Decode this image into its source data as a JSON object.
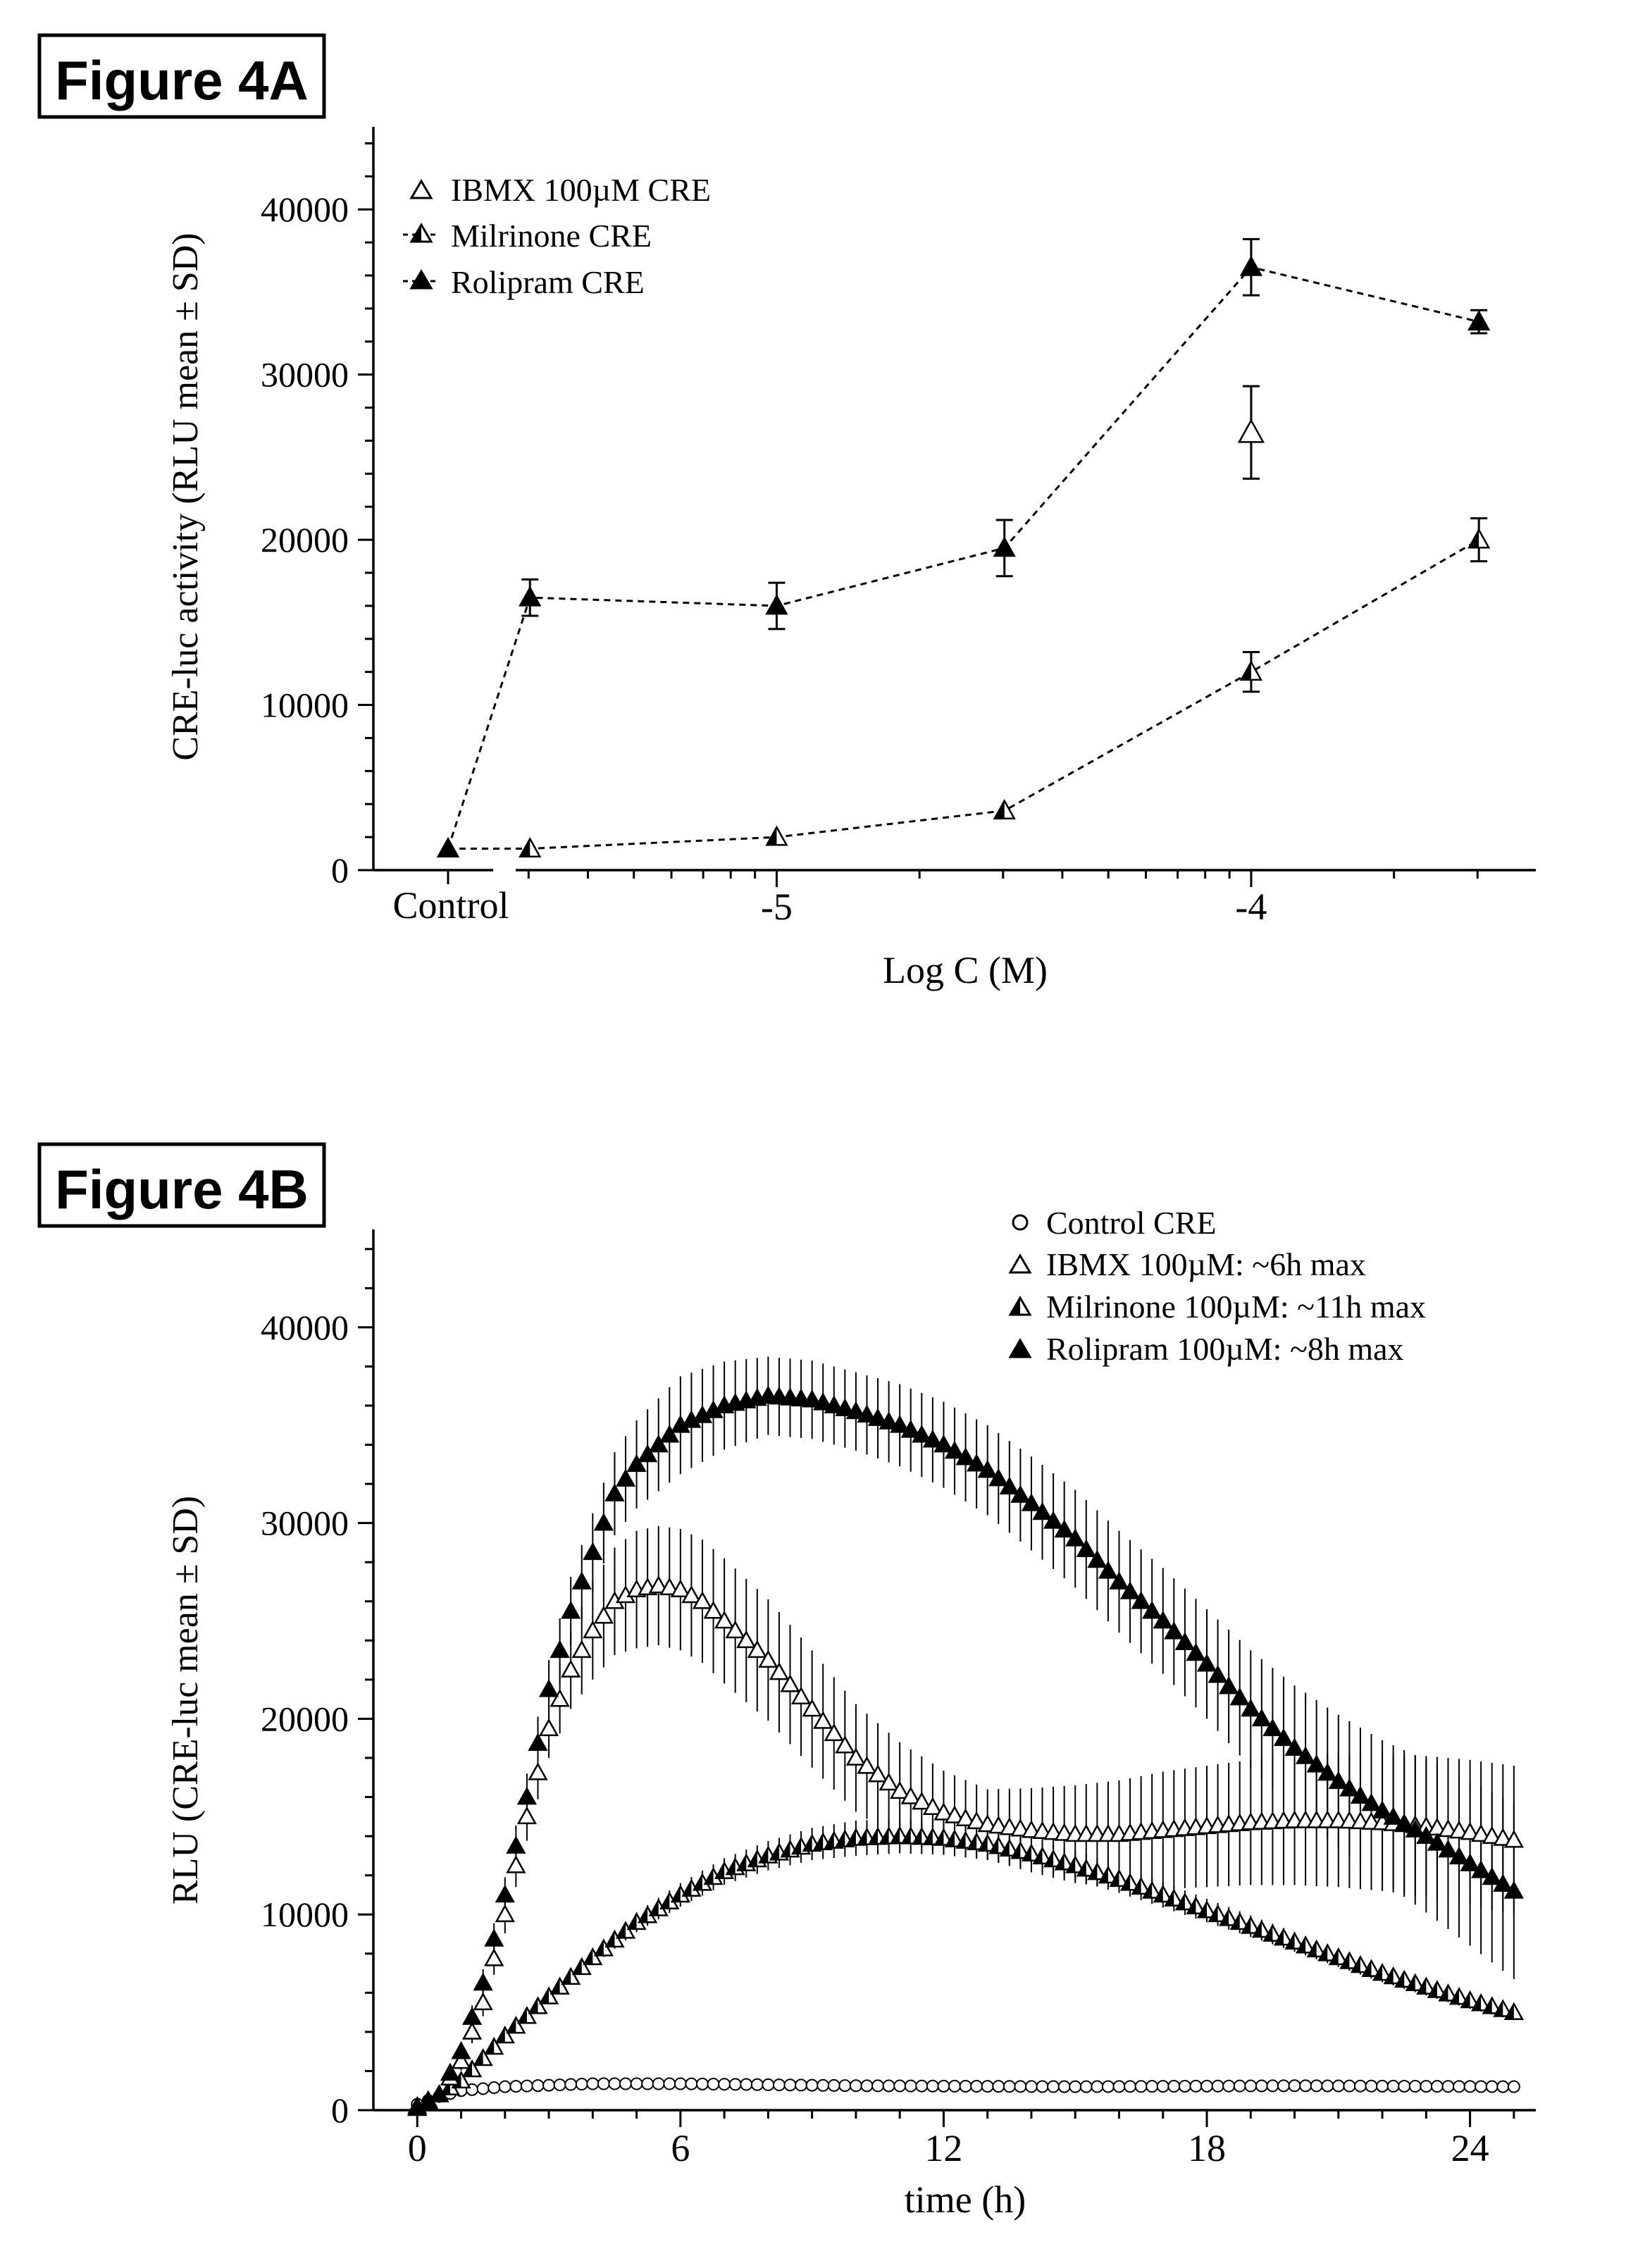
{
  "panels": [
    {
      "label": "Figure 4A",
      "type": "line",
      "xlabel": "Log C (M)",
      "ylabel": "CRE-luc activity (RLU mean ± SD)",
      "x_range": [
        -5.85,
        -3.4
      ],
      "ylim": [
        0,
        45000
      ],
      "y_ticks": [
        0,
        10000,
        20000,
        30000,
        40000
      ],
      "y_tick_labels": [
        "0",
        "10000",
        "20000",
        "30000",
        "40000"
      ],
      "x_ticks": [
        -5,
        -4
      ],
      "x_tick_labels": [
        "-5",
        "-4"
      ],
      "control_label": "Control",
      "legend": [
        {
          "label": "IBMX 100µM CRE",
          "marker": "open"
        },
        {
          "label": "Milrinone CRE",
          "marker": "half"
        },
        {
          "label": "Rolipram CRE",
          "marker": "filled"
        }
      ],
      "ibmx_point": {
        "x": -4.0,
        "y": 26500,
        "sd": 2800
      },
      "series": [
        {
          "name": "Milrinone CRE",
          "marker": "half",
          "points": [
            {
              "x": "Control",
              "y": 1300,
              "sd": 0
            },
            {
              "x": -5.52,
              "y": 1300,
              "sd": 0
            },
            {
              "x": -5.0,
              "y": 2000,
              "sd": 0
            },
            {
              "x": -4.52,
              "y": 3600,
              "sd": 0
            },
            {
              "x": -4.0,
              "y": 12000,
              "sd": 1200
            },
            {
              "x": -3.52,
              "y": 20000,
              "sd": 1300
            }
          ]
        },
        {
          "name": "Rolipram CRE",
          "marker": "filled",
          "points": [
            {
              "x": "Control",
              "y": 1300,
              "sd": 0
            },
            {
              "x": -5.52,
              "y": 16500,
              "sd": 1100
            },
            {
              "x": -5.0,
              "y": 16000,
              "sd": 1400
            },
            {
              "x": -4.52,
              "y": 19500,
              "sd": 1700
            },
            {
              "x": -4.0,
              "y": 36500,
              "sd": 1700
            },
            {
              "x": -3.52,
              "y": 33200,
              "sd": 700
            }
          ]
        }
      ]
    },
    {
      "label": "Figure 4B",
      "type": "scatter",
      "xlabel": "time (h)",
      "ylabel": "RLU (CRE-luc mean ± SD)",
      "xlim": [
        -1,
        25.5
      ],
      "ylim": [
        0,
        45000
      ],
      "x_ticks": [
        0,
        6,
        12,
        18,
        24
      ],
      "x_tick_labels": [
        "0",
        "6",
        "12",
        "18",
        "24"
      ],
      "y_ticks": [
        0,
        10000,
        20000,
        30000,
        40000
      ],
      "y_tick_labels": [
        "0",
        "10000",
        "20000",
        "30000",
        "40000"
      ],
      "time_step_h": 0.25,
      "time_end_h": 25,
      "legend": [
        {
          "label": "Control CRE",
          "marker": "circle"
        },
        {
          "label": "IBMX 100µM: ~6h max",
          "marker": "open"
        },
        {
          "label": "Milrinone 100µM: ~11h max",
          "marker": "half"
        },
        {
          "label": "Rolipram 100µM: ~8h max",
          "marker": "filled"
        }
      ],
      "series": [
        {
          "name": "Control CRE",
          "marker": "circle",
          "curve": [
            [
              0,
              300
            ],
            [
              0.5,
              700
            ],
            [
              1,
              1000
            ],
            [
              2,
              1200
            ],
            [
              4,
              1350
            ],
            [
              6,
              1350
            ],
            [
              10,
              1250
            ],
            [
              15,
              1200
            ],
            [
              20,
              1250
            ],
            [
              25,
              1200
            ]
          ],
          "sd_curve": [
            [
              0,
              0
            ],
            [
              25,
              0
            ]
          ]
        },
        {
          "name": "IBMX 100µM",
          "marker": "open",
          "curve": [
            [
              0,
              200
            ],
            [
              0.5,
              800
            ],
            [
              1,
              2500
            ],
            [
              1.5,
              5500
            ],
            [
              2,
              10000
            ],
            [
              2.5,
              15000
            ],
            [
              3,
              19500
            ],
            [
              3.5,
              22500
            ],
            [
              4,
              24500
            ],
            [
              4.5,
              26000
            ],
            [
              5,
              26600
            ],
            [
              5.5,
              26800
            ],
            [
              6,
              26600
            ],
            [
              6.5,
              26000
            ],
            [
              7,
              25000
            ],
            [
              8,
              23000
            ],
            [
              9,
              20500
            ],
            [
              10,
              18000
            ],
            [
              11,
              16300
            ],
            [
              12,
              15200
            ],
            [
              13,
              14600
            ],
            [
              14,
              14300
            ],
            [
              15,
              14100
            ],
            [
              16,
              14100
            ],
            [
              17,
              14300
            ],
            [
              18,
              14500
            ],
            [
              19,
              14700
            ],
            [
              20,
              14800
            ],
            [
              21,
              14800
            ],
            [
              22,
              14700
            ],
            [
              23,
              14500
            ],
            [
              24,
              14200
            ],
            [
              25,
              13800
            ]
          ],
          "sd_curve": [
            [
              0,
              0
            ],
            [
              1.5,
              700
            ],
            [
              3,
              1500
            ],
            [
              4,
              2500
            ],
            [
              5,
              3000
            ],
            [
              7,
              3200
            ],
            [
              9,
              3000
            ],
            [
              11,
              2500
            ],
            [
              13,
              1800
            ],
            [
              15,
              2500
            ],
            [
              17,
              3000
            ],
            [
              19,
              3200
            ],
            [
              21,
              3400
            ],
            [
              23,
              3600
            ],
            [
              25,
              3800
            ]
          ]
        },
        {
          "name": "Milrinone 100µM",
          "marker": "half",
          "curve": [
            [
              0,
              100
            ],
            [
              1,
              1500
            ],
            [
              2,
              3800
            ],
            [
              3,
              5800
            ],
            [
              4,
              7800
            ],
            [
              5,
              9600
            ],
            [
              6,
              11000
            ],
            [
              7,
              12200
            ],
            [
              8,
              13000
            ],
            [
              9,
              13600
            ],
            [
              10,
              13900
            ],
            [
              11,
              14000
            ],
            [
              12,
              13900
            ],
            [
              13,
              13600
            ],
            [
              14,
              13100
            ],
            [
              15,
              12500
            ],
            [
              16,
              11800
            ],
            [
              17,
              11000
            ],
            [
              18,
              10200
            ],
            [
              19,
              9400
            ],
            [
              20,
              8600
            ],
            [
              21,
              7800
            ],
            [
              22,
              7000
            ],
            [
              23,
              6300
            ],
            [
              24,
              5600
            ],
            [
              25,
              5000
            ]
          ],
          "sd_curve": [
            [
              0,
              0
            ],
            [
              3,
              300
            ],
            [
              6,
              600
            ],
            [
              10,
              900
            ],
            [
              14,
              800
            ],
            [
              20,
              500
            ],
            [
              25,
              400
            ]
          ]
        },
        {
          "name": "Rolipram 100µM",
          "marker": "filled",
          "curve": [
            [
              0,
              100
            ],
            [
              0.5,
              800
            ],
            [
              1,
              3000
            ],
            [
              1.5,
              6500
            ],
            [
              2,
              11000
            ],
            [
              2.5,
              16000
            ],
            [
              3,
              21500
            ],
            [
              3.5,
              25500
            ],
            [
              4,
              28500
            ],
            [
              4.5,
              31500
            ],
            [
              5,
              33000
            ],
            [
              6,
              35000
            ],
            [
              7,
              36000
            ],
            [
              8,
              36500
            ],
            [
              9,
              36300
            ],
            [
              10,
              35700
            ],
            [
              11,
              35000
            ],
            [
              12,
              34000
            ],
            [
              13,
              32700
            ],
            [
              14,
              31000
            ],
            [
              15,
              29200
            ],
            [
              16,
              27000
            ],
            [
              17,
              25000
            ],
            [
              18,
              22800
            ],
            [
              19,
              20500
            ],
            [
              20,
              18500
            ],
            [
              21,
              16800
            ],
            [
              22,
              15300
            ],
            [
              23,
              14000
            ],
            [
              24,
              12600
            ],
            [
              25,
              11200
            ]
          ],
          "sd_curve": [
            [
              0,
              0
            ],
            [
              1,
              500
            ],
            [
              2,
              900
            ],
            [
              3,
              1500
            ],
            [
              4,
              2000
            ],
            [
              6,
              2500
            ],
            [
              8,
              2000
            ],
            [
              10,
              2000
            ],
            [
              12,
              2200
            ],
            [
              14,
              2400
            ],
            [
              16,
              2600
            ],
            [
              18,
              2800
            ],
            [
              20,
              3200
            ],
            [
              22,
              3600
            ],
            [
              24,
              4200
            ],
            [
              25,
              4500
            ]
          ]
        }
      ]
    }
  ]
}
